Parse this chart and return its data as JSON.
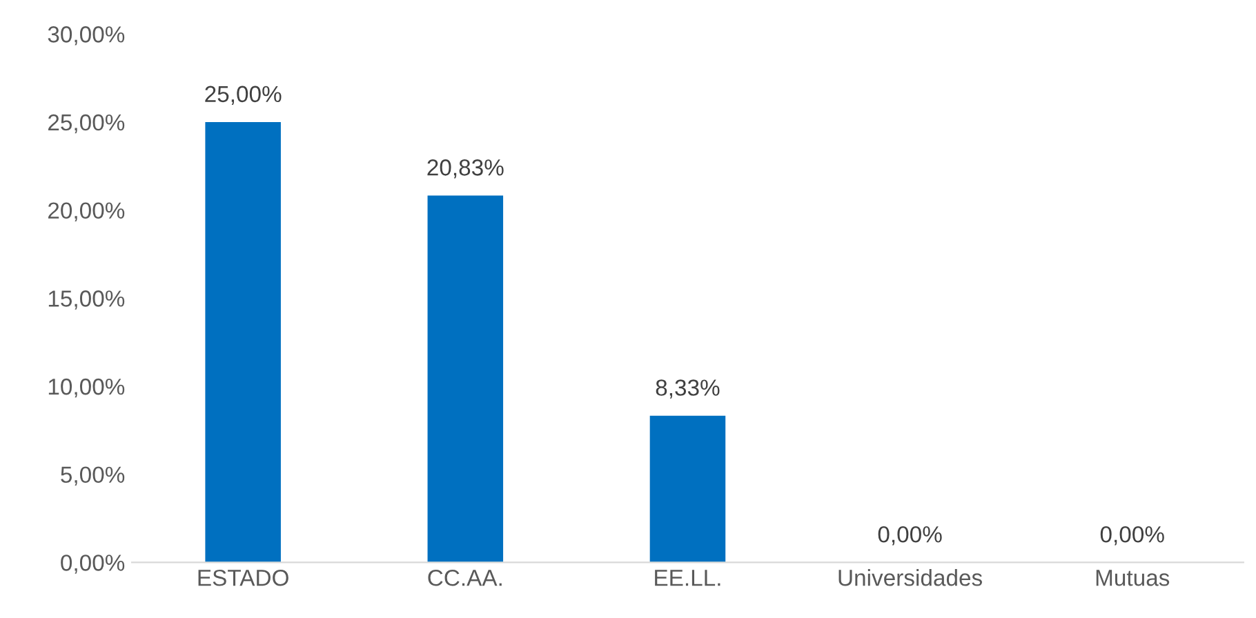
{
  "chart_data": {
    "type": "bar",
    "categories": [
      "ESTADO",
      "CC.AA.",
      "EE.LL.",
      "Universidades",
      "Mutuas"
    ],
    "values": [
      25,
      20.83,
      8.33,
      0,
      0
    ],
    "value_labels": [
      "25,00%",
      "20,83%",
      "8,33%",
      "0,00%",
      "0,00%"
    ],
    "color": "#0070c0",
    "ylim": [
      0,
      30
    ],
    "yticks": [
      {
        "value": 0,
        "label": "0,00%"
      },
      {
        "value": 5,
        "label": "5,00%"
      },
      {
        "value": 10,
        "label": "10,00%"
      },
      {
        "value": 15,
        "label": "15,00%"
      },
      {
        "value": 20,
        "label": "20,00%"
      },
      {
        "value": 25,
        "label": "25,00%"
      },
      {
        "value": 30,
        "label": "30,00%"
      }
    ],
    "grid": false,
    "legend": false
  }
}
